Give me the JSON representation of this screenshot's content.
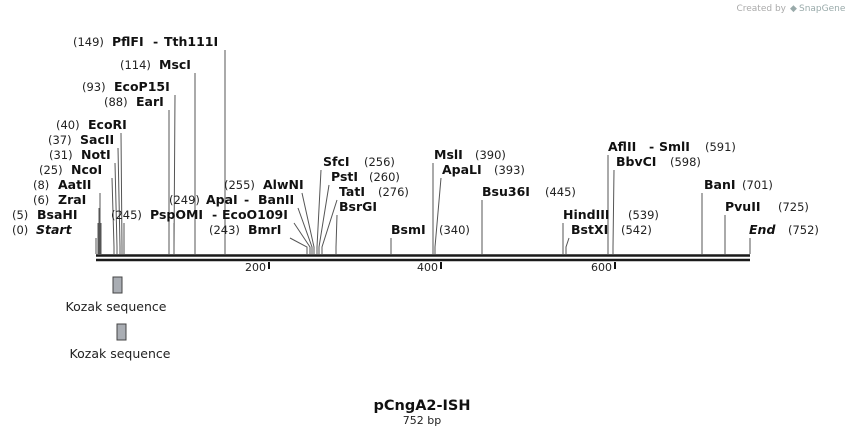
{
  "credit": {
    "prefix": "Created by",
    "brand": "SnapGene"
  },
  "plasmid": {
    "name": "pCngA2-ISH",
    "length_label": "752 bp"
  },
  "map": {
    "start": 0,
    "end": 752
  },
  "ticks": [
    {
      "value": 200,
      "label": "200"
    },
    {
      "value": 400,
      "label": "400"
    },
    {
      "value": 600,
      "label": "600"
    }
  ],
  "sites": [
    {
      "pos": 149,
      "pos_label": "(149)",
      "names": [
        "PflFI",
        "Tth111I"
      ]
    },
    {
      "pos": 114,
      "pos_label": "(114)",
      "names": [
        "MscI"
      ]
    },
    {
      "pos": 93,
      "pos_label": "(93)",
      "names": [
        "EcoP15I"
      ]
    },
    {
      "pos": 88,
      "pos_label": "(88)",
      "names": [
        "EarI"
      ]
    },
    {
      "pos": 40,
      "pos_label": "(40)",
      "names": [
        "EcoRI"
      ]
    },
    {
      "pos": 37,
      "pos_label": "(37)",
      "names": [
        "SacII"
      ]
    },
    {
      "pos": 31,
      "pos_label": "(31)",
      "names": [
        "NotI"
      ]
    },
    {
      "pos": 25,
      "pos_label": "(25)",
      "names": [
        "NcoI"
      ]
    },
    {
      "pos": 8,
      "pos_label": "(8)",
      "names": [
        "AatII"
      ]
    },
    {
      "pos": 6,
      "pos_label": "(6)",
      "names": [
        "ZraI"
      ]
    },
    {
      "pos": 5,
      "pos_label": "(5)",
      "names": [
        "BsaHI"
      ]
    },
    {
      "pos": 0,
      "pos_label": "(0)",
      "names": [
        "Start"
      ],
      "italic": true
    },
    {
      "pos": 245,
      "pos_label": "(245)",
      "names": []
    },
    {
      "pos": 249,
      "pos_label": "(249)",
      "names": [
        "PspOMI"
      ]
    },
    {
      "pos": 255,
      "pos_label": "(255)",
      "names": [
        "ApaI",
        "BanII"
      ]
    },
    {
      "pos": 255,
      "pos_label": "",
      "names": [
        "AlwNI"
      ]
    },
    {
      "pos": 249,
      "pos_label": "",
      "names": [
        "EcoO109I"
      ]
    },
    {
      "pos": 243,
      "pos_label": "(243)",
      "names": [
        "BmrI"
      ]
    },
    {
      "pos": 256,
      "pos_label": "(256)",
      "names": [
        "SfcI"
      ]
    },
    {
      "pos": 260,
      "pos_label": "(260)",
      "names": [
        "PstI"
      ]
    },
    {
      "pos": 276,
      "pos_label": "(276)",
      "names": [
        "TatI"
      ]
    },
    {
      "pos": 276,
      "pos_label": "",
      "names": [
        "BsrGI"
      ]
    },
    {
      "pos": 340,
      "pos_label": "(340)",
      "names": [
        "BsmI"
      ]
    },
    {
      "pos": 390,
      "pos_label": "(390)",
      "names": [
        "MslI"
      ]
    },
    {
      "pos": 393,
      "pos_label": "(393)",
      "names": [
        "ApaLI"
      ]
    },
    {
      "pos": 445,
      "pos_label": "(445)",
      "names": [
        "Bsu36I"
      ]
    },
    {
      "pos": 539,
      "pos_label": "(539)",
      "names": [
        "HindIII"
      ]
    },
    {
      "pos": 542,
      "pos_label": "(542)",
      "names": [
        "BstXI"
      ]
    },
    {
      "pos": 591,
      "pos_label": "(591)",
      "names": [
        "AflII",
        "SmlI"
      ]
    },
    {
      "pos": 598,
      "pos_label": "(598)",
      "names": [
        "BbvCI"
      ]
    },
    {
      "pos": 701,
      "pos_label": "(701)",
      "names": [
        "BanI"
      ]
    },
    {
      "pos": 725,
      "pos_label": "(725)",
      "names": [
        "PvuII"
      ]
    },
    {
      "pos": 752,
      "pos_label": "(752)",
      "names": [
        "End"
      ],
      "italic": true
    }
  ],
  "features": [
    {
      "name": "Kozak sequence",
      "pos": 25,
      "color": "#a9adb3"
    },
    {
      "name": "Kozak sequence",
      "pos": 31,
      "color": "#a9adb3"
    }
  ],
  "colors": {
    "backbone": "#1a1a1a",
    "lines": "#555555",
    "feature": "#a9adb3"
  }
}
